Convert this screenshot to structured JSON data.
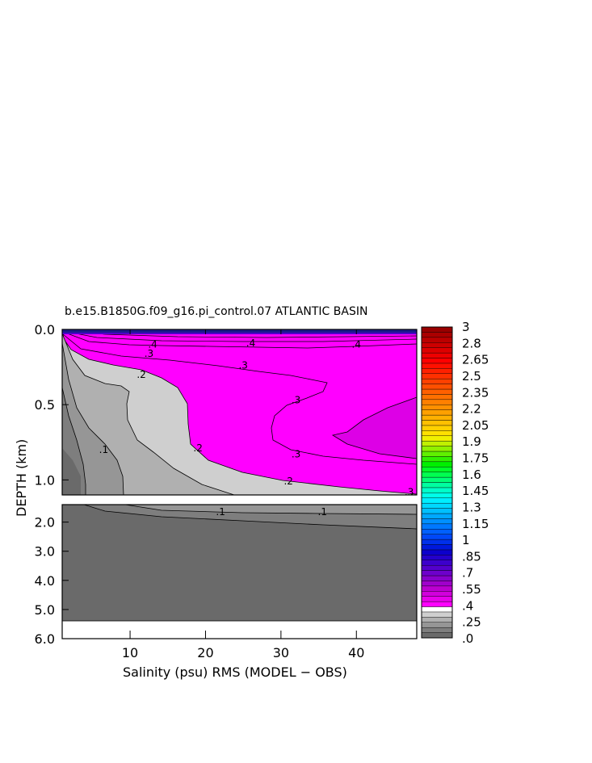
{
  "chart_data": {
    "type": "heatmap",
    "title": "b.e15.B1850G.f09_g16.pi_control.07 ATLANTIC BASIN",
    "xlabel": "Salinity (psu) RMS (MODEL − OBS)",
    "ylabel": "DEPTH (km)",
    "xlim": [
      1,
      48
    ],
    "x_ticks": [
      "10",
      "20",
      "30",
      "40"
    ],
    "upper_panel": {
      "ylim": [
        0.0,
        1.1
      ],
      "y_ticks": [
        "0.0",
        "0.5",
        "1.0"
      ]
    },
    "lower_panel": {
      "ylim": [
        1.4,
        6.0
      ],
      "y_ticks": [
        "2.0",
        "3.0",
        "4.0",
        "5.0",
        "6.0"
      ]
    },
    "contour_labels": [
      {
        "text": ".4",
        "panel": "upper",
        "x": 13.0,
        "y": 0.1
      },
      {
        "text": ".4",
        "panel": "upper",
        "x": 26.0,
        "y": 0.09
      },
      {
        "text": ".4",
        "panel": "upper",
        "x": 40.0,
        "y": 0.1
      },
      {
        "text": ".3",
        "panel": "upper",
        "x": 12.5,
        "y": 0.16
      },
      {
        "text": ".3",
        "panel": "upper",
        "x": 25.0,
        "y": 0.24
      },
      {
        "text": ".3",
        "panel": "upper",
        "x": 32.0,
        "y": 0.47
      },
      {
        "text": ".3",
        "panel": "upper",
        "x": 32.0,
        "y": 0.83
      },
      {
        "text": ".3",
        "panel": "upper",
        "x": 47.0,
        "y": 1.08
      },
      {
        "text": ".2",
        "panel": "upper",
        "x": 11.5,
        "y": 0.3
      },
      {
        "text": ".2",
        "panel": "upper",
        "x": 19.0,
        "y": 0.79
      },
      {
        "text": ".2",
        "panel": "upper",
        "x": 31.0,
        "y": 1.01
      },
      {
        "text": ".1",
        "panel": "upper",
        "x": 6.5,
        "y": 0.8
      },
      {
        "text": ".1",
        "panel": "lower",
        "x": 22.0,
        "y": 1.65
      },
      {
        "text": ".1",
        "panel": "lower",
        "x": 35.5,
        "y": 1.65
      }
    ],
    "colorbar": {
      "labels": [
        "3",
        "2.8",
        "2.65",
        "2.5",
        "2.35",
        "2.2",
        "2.05",
        "1.9",
        "1.75",
        "1.6",
        "1.45",
        "1.3",
        "1.15",
        "1",
        ".85",
        ".7",
        ".55",
        ".4",
        ".25",
        ".0"
      ],
      "colors": [
        "#6a6a6a",
        "#7e7e7e",
        "#969696",
        "#b0b0b0",
        "#cfcfcf",
        "#ffffff",
        "#ff00ff",
        "#e800ec",
        "#d200dc",
        "#bc00d0",
        "#a000cc",
        "#8800cc",
        "#6e00cc",
        "#5400cc",
        "#3c00cc",
        "#2400cc",
        "#0c00cc",
        "#0018dc",
        "#0030ea",
        "#0048f8",
        "#0060ff",
        "#0078ff",
        "#0090ff",
        "#00a8ff",
        "#00c0ff",
        "#00d8ff",
        "#00eeff",
        "#00ffe8",
        "#00ffc8",
        "#00ffa0",
        "#00ff78",
        "#00ff50",
        "#00ff28",
        "#00f000",
        "#30f000",
        "#60f000",
        "#90f000",
        "#c0f000",
        "#f0f000",
        "#ffe000",
        "#ffd000",
        "#ffc000",
        "#ffb000",
        "#ffa000",
        "#ff9000",
        "#ff8000",
        "#ff7000",
        "#ff6000",
        "#ff5000",
        "#ff4000",
        "#ff3000",
        "#ff2000",
        "#ff1000",
        "#ff0000",
        "#ee0000",
        "#dd0000",
        "#cc0000",
        "#bb0000",
        "#aa0000",
        "#990000"
      ]
    },
    "fill_colors": {
      "magenta": "#ff00ff",
      "light_gray": "#cfcfcf",
      "mid_gray": "#b0b0b0",
      "gray": "#969696",
      "dark_gray": "#7e7e7e",
      "darkest_gray": "#6a6a6a",
      "deep_magenta": "#dd00e6",
      "surface_blue": "#1a1a8c"
    }
  }
}
